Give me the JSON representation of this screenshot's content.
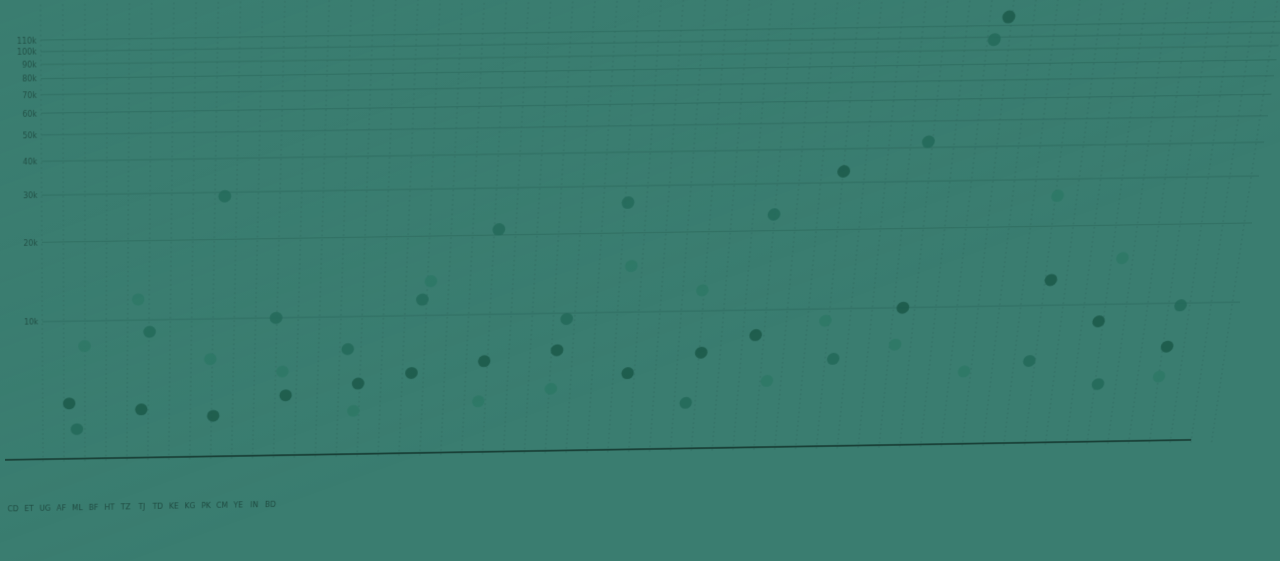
{
  "colors": {
    "background": "#3a7d70",
    "gridline_major": "#2f6d61",
    "gridline_minor": "#336f64",
    "axis_line": "#173c34",
    "point_dark": "#1c5a4a",
    "point_mid": "#24695a",
    "point_light": "#2e7866"
  },
  "chart_data": {
    "type": "scatter",
    "title": "",
    "xlabel": "",
    "ylabel": "",
    "y_scale": "log-like",
    "y_ticks": [
      "110k",
      "100k",
      "90k",
      "80k",
      "70k",
      "60k",
      "50k",
      "40k",
      "30k",
      "20k",
      "10k"
    ],
    "y_tick_values": [
      110000,
      100000,
      90000,
      80000,
      70000,
      60000,
      50000,
      40000,
      30000,
      20000,
      10000
    ],
    "ylim": [
      3000,
      120000
    ],
    "grid": true,
    "legend": "none",
    "categories": [
      "CD",
      "ET",
      "UG",
      "AF",
      "ML",
      "BF",
      "HT",
      "TZ",
      "TJ",
      "TD",
      "KE",
      "KG",
      "PK",
      "CM",
      "YE",
      "IN",
      "BD"
    ],
    "points": [
      {
        "x": 0,
        "y": 4800
      },
      {
        "x": 0,
        "y": 3800
      },
      {
        "x": 0,
        "y": 8000
      },
      {
        "x": 1,
        "y": 4500
      },
      {
        "x": 1,
        "y": 9000
      },
      {
        "x": 1,
        "y": 12000
      },
      {
        "x": 2,
        "y": 4200
      },
      {
        "x": 2,
        "y": 29000
      },
      {
        "x": 2,
        "y": 7000
      },
      {
        "x": 3,
        "y": 5000
      },
      {
        "x": 3,
        "y": 10000
      },
      {
        "x": 3,
        "y": 6200
      },
      {
        "x": 4,
        "y": 5500
      },
      {
        "x": 4,
        "y": 7500
      },
      {
        "x": 4,
        "y": 4300
      },
      {
        "x": 5,
        "y": 6000
      },
      {
        "x": 5,
        "y": 11500
      },
      {
        "x": 5,
        "y": 13500
      },
      {
        "x": 6,
        "y": 6600
      },
      {
        "x": 6,
        "y": 21000
      },
      {
        "x": 6,
        "y": 4600
      },
      {
        "x": 7,
        "y": 7200
      },
      {
        "x": 7,
        "y": 9500
      },
      {
        "x": 7,
        "y": 5100
      },
      {
        "x": 8,
        "y": 5800
      },
      {
        "x": 8,
        "y": 26000
      },
      {
        "x": 8,
        "y": 15000
      },
      {
        "x": 9,
        "y": 6900
      },
      {
        "x": 9,
        "y": 4400
      },
      {
        "x": 9,
        "y": 12000
      },
      {
        "x": 10,
        "y": 8000
      },
      {
        "x": 10,
        "y": 23000
      },
      {
        "x": 10,
        "y": 5300
      },
      {
        "x": 11,
        "y": 33000
      },
      {
        "x": 11,
        "y": 6400
      },
      {
        "x": 11,
        "y": 9000
      },
      {
        "x": 12,
        "y": 10000
      },
      {
        "x": 12,
        "y": 42000
      },
      {
        "x": 12,
        "y": 7200
      },
      {
        "x": 13,
        "y": 118000
      },
      {
        "x": 13,
        "y": 98000
      },
      {
        "x": 13,
        "y": 5600
      },
      {
        "x": 14,
        "y": 12500
      },
      {
        "x": 14,
        "y": 6100
      },
      {
        "x": 14,
        "y": 26000
      },
      {
        "x": 15,
        "y": 8600
      },
      {
        "x": 15,
        "y": 4900
      },
      {
        "x": 15,
        "y": 15000
      },
      {
        "x": 16,
        "y": 6800
      },
      {
        "x": 16,
        "y": 9800
      },
      {
        "x": 16,
        "y": 5200
      }
    ]
  }
}
